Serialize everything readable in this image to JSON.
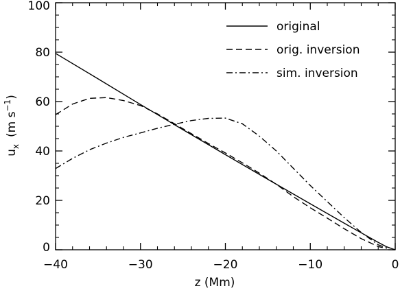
{
  "chart_data": {
    "type": "line",
    "xlabel": "z  (Mm)",
    "ylabel": {
      "main": "u",
      "sub": "x",
      "units": "(m s",
      "sup": "−1",
      "close": ")"
    },
    "xlim": [
      -40,
      0
    ],
    "ylim": [
      0,
      100
    ],
    "xticks": [
      -40,
      -30,
      -20,
      -10,
      0
    ],
    "xtick_labels": [
      "−40",
      "−30",
      "−20",
      "−10",
      "0"
    ],
    "yticks": [
      0,
      20,
      40,
      60,
      80,
      100
    ],
    "ytick_labels": [
      "0",
      "20",
      "40",
      "60",
      "80",
      "100"
    ],
    "grid": false,
    "legend_position": "top-right",
    "series": [
      {
        "name": "original",
        "style": "solid",
        "x": [
          -40,
          -35,
          -30,
          -25,
          -20,
          -15,
          -10,
          -5,
          -2,
          -1,
          0
        ],
        "y": [
          79.5,
          69.2,
          58.8,
          48.6,
          38.5,
          28.5,
          18.6,
          8.8,
          3.0,
          1.2,
          0
        ]
      },
      {
        "name": "orig. inversion",
        "style": "dashed",
        "x": [
          -40,
          -38,
          -36,
          -34,
          -32,
          -30,
          -28,
          -26,
          -24,
          -22,
          -20,
          -18,
          -16,
          -14,
          -12,
          -10,
          -8,
          -6,
          -4,
          -2,
          -1
        ],
        "y": [
          54.7,
          59.0,
          61.3,
          61.6,
          60.4,
          58.4,
          55.0,
          51.0,
          47.0,
          43.0,
          39.2,
          35.2,
          31.0,
          26.5,
          21.5,
          17.0,
          12.8,
          8.5,
          4.5,
          1.3,
          0.5
        ]
      },
      {
        "name": "sim. inversion",
        "style": "dashdot",
        "x": [
          -40,
          -38,
          -36,
          -34,
          -32,
          -30,
          -28,
          -26,
          -24,
          -22,
          -20,
          -18,
          -16,
          -14,
          -12,
          -10,
          -8,
          -6,
          -4,
          -2,
          -1
        ],
        "y": [
          32.9,
          37.0,
          40.5,
          43.2,
          45.5,
          47.3,
          49.2,
          50.8,
          52.3,
          53.2,
          53.3,
          51.0,
          46.0,
          40.0,
          33.0,
          26.0,
          19.5,
          13.0,
          7.0,
          2.0,
          0.8
        ]
      }
    ]
  }
}
